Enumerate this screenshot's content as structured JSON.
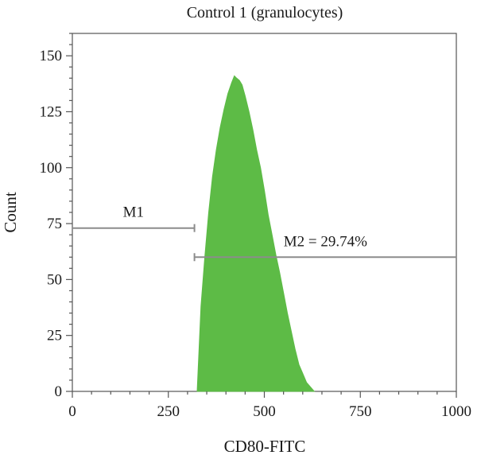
{
  "chart_data": {
    "type": "area",
    "title": "Control 1 (granulocytes)",
    "xlabel": "CD80-FITC",
    "ylabel": "Count",
    "xlim": [
      0,
      1000
    ],
    "ylim": [
      0,
      160
    ],
    "xticks": [
      0,
      250,
      500,
      750,
      1000
    ],
    "yticks": [
      0,
      25,
      50,
      75,
      100,
      125,
      150
    ],
    "grid": false,
    "fill_color": "#5dbb46",
    "series": [
      {
        "x": [
          325,
          335,
          345,
          355,
          365,
          375,
          385,
          395,
          405,
          415,
          422,
          428,
          435,
          442,
          450,
          460,
          470,
          480,
          490,
          500,
          510,
          520,
          530,
          540,
          550,
          560,
          570,
          580,
          590,
          600,
          610,
          620,
          630
        ],
        "y": [
          0,
          38,
          60,
          80,
          96,
          108,
          118,
          126,
          133,
          138,
          141,
          140,
          139,
          137,
          132,
          125,
          117,
          108,
          100,
          90,
          79,
          70,
          61,
          53,
          44,
          35,
          27,
          19,
          12,
          8,
          4,
          2,
          0
        ]
      }
    ],
    "markers": [
      {
        "label": "M1",
        "x_start": 0,
        "x_end": 318,
        "y": 73
      },
      {
        "label": "M2 = 29.74%",
        "x_start": 318,
        "x_end": 1000,
        "y": 60
      }
    ]
  }
}
